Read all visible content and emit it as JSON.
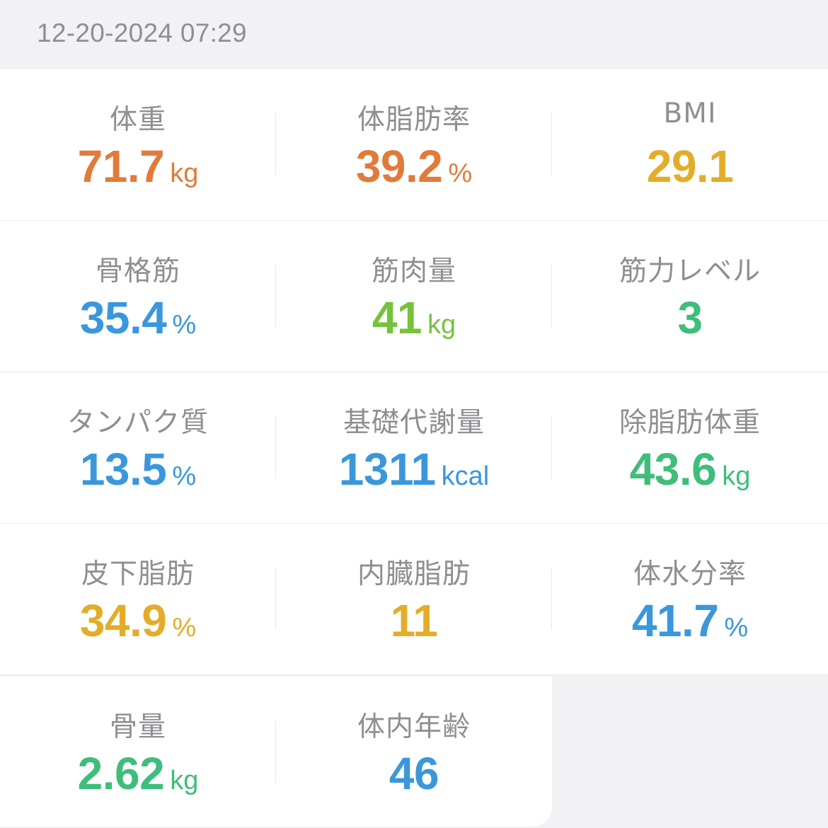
{
  "timestamp": "12-20-2024 07:29",
  "colors": {
    "orange": "#e07b3a",
    "yellow": "#e3ad2a",
    "blue": "#3b97dc",
    "lime": "#75c23b",
    "green": "#3fbd7b"
  },
  "metrics": [
    {
      "label": "体重",
      "value": "71.7",
      "unit": "kg",
      "color": "#e07b3a"
    },
    {
      "label": "体脂肪率",
      "value": "39.2",
      "unit": "%",
      "color": "#e07b3a"
    },
    {
      "label": "BMI",
      "value": "29.1",
      "unit": "",
      "color": "#e3ad2a"
    },
    {
      "label": "骨格筋",
      "value": "35.4",
      "unit": "%",
      "color": "#3b97dc"
    },
    {
      "label": "筋肉量",
      "value": "41",
      "unit": "kg",
      "color": "#75c23b"
    },
    {
      "label": "筋力レベル",
      "value": "3",
      "unit": "",
      "color": "#3fbd7b"
    },
    {
      "label": "タンパク質",
      "value": "13.5",
      "unit": "%",
      "color": "#3b97dc"
    },
    {
      "label": "基礎代謝量",
      "value": "1311",
      "unit": "kcal",
      "color": "#3b97dc"
    },
    {
      "label": "除脂肪体重",
      "value": "43.6",
      "unit": "kg",
      "color": "#3fbd7b"
    },
    {
      "label": "皮下脂肪",
      "value": "34.9",
      "unit": "%",
      "color": "#e3ad2a"
    },
    {
      "label": "内臓脂肪",
      "value": "11",
      "unit": "",
      "color": "#e3ad2a"
    },
    {
      "label": "体水分率",
      "value": "41.7",
      "unit": "%",
      "color": "#3b97dc"
    },
    {
      "label": "骨量",
      "value": "2.62",
      "unit": "kg",
      "color": "#3fbd7b"
    },
    {
      "label": "体内年齢",
      "value": "46",
      "unit": "",
      "color": "#3b97dc"
    }
  ]
}
